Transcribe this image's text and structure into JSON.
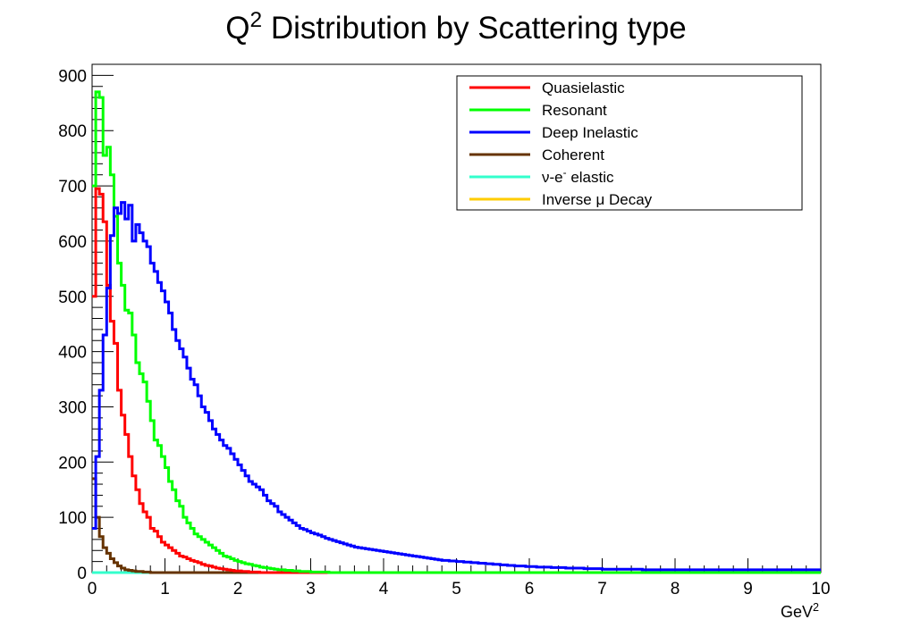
{
  "chart_data": {
    "type": "line",
    "style": "step-histogram",
    "title": {
      "base": "Q",
      "sup": "2",
      "rest": " Distribution by Scattering type"
    },
    "xlabel": {
      "base": "GeV",
      "sup": "2"
    },
    "ylabel": "",
    "xlim": [
      0,
      10
    ],
    "ylim": [
      0,
      920
    ],
    "x_ticks": [
      0,
      1,
      2,
      3,
      4,
      5,
      6,
      7,
      8,
      9,
      10
    ],
    "y_ticks": [
      0,
      100,
      200,
      300,
      400,
      500,
      600,
      700,
      800,
      900
    ],
    "grid": false,
    "legend_position": "top-right",
    "bin_width": 0.05,
    "series": [
      {
        "name": "Quasielastic",
        "legend": {
          "parts": [
            {
              "t": "Quasielastic"
            }
          ]
        },
        "color": "#ff0000",
        "values": [
          500,
          695,
          685,
          635,
          520,
          455,
          415,
          330,
          285,
          250,
          210,
          175,
          150,
          125,
          110,
          100,
          80,
          75,
          65,
          55,
          50,
          45,
          40,
          35,
          30,
          28,
          25,
          22,
          20,
          18,
          15,
          13,
          12,
          10,
          8,
          7,
          6,
          5,
          4,
          3,
          3,
          2,
          2,
          1,
          1,
          1,
          0,
          0,
          0,
          0
        ]
      },
      {
        "name": "Resonant",
        "legend": {
          "parts": [
            {
              "t": "Resonant"
            }
          ]
        },
        "color": "#00ff00",
        "values": [
          700,
          870,
          860,
          755,
          770,
          720,
          645,
          560,
          520,
          475,
          470,
          430,
          380,
          360,
          345,
          310,
          275,
          240,
          230,
          210,
          190,
          165,
          150,
          130,
          120,
          100,
          90,
          80,
          70,
          65,
          60,
          55,
          50,
          45,
          40,
          35,
          30,
          28,
          25,
          22,
          20,
          18,
          16,
          15,
          13,
          12,
          10,
          9,
          8,
          7,
          6,
          5,
          5,
          4,
          4,
          3,
          3,
          2,
          2,
          2,
          1,
          1,
          1,
          1,
          1,
          0,
          0,
          0,
          0,
          0
        ]
      },
      {
        "name": "Deep Inelastic",
        "legend": {
          "parts": [
            {
              "t": "Deep Inelastic"
            }
          ]
        },
        "color": "#0000ff",
        "values": [
          80,
          210,
          330,
          430,
          515,
          610,
          660,
          650,
          670,
          640,
          665,
          600,
          630,
          615,
          600,
          590,
          560,
          545,
          525,
          510,
          490,
          470,
          440,
          420,
          405,
          390,
          370,
          350,
          340,
          320,
          300,
          290,
          275,
          260,
          250,
          240,
          230,
          225,
          215,
          205,
          195,
          185,
          175,
          165,
          160,
          155,
          150,
          140,
          130,
          125,
          120,
          110,
          105,
          100,
          95,
          90,
          85,
          80,
          78,
          75,
          72,
          70,
          68,
          65,
          62,
          60,
          58,
          56,
          54,
          52,
          50,
          48,
          46,
          45,
          44,
          43,
          42,
          41,
          40,
          39,
          38,
          37,
          36,
          35,
          34,
          33,
          32,
          31,
          30,
          29,
          28,
          27,
          26,
          25,
          24,
          23,
          22,
          22,
          21,
          21,
          20,
          20,
          19,
          19,
          18,
          18,
          17,
          17,
          16,
          16,
          15,
          15,
          14,
          14,
          13,
          13,
          12,
          12,
          12,
          11,
          11,
          11,
          10,
          10,
          10,
          10,
          9,
          9,
          9,
          9,
          8,
          8,
          8,
          8,
          8,
          7,
          7,
          7,
          7,
          7,
          6,
          6,
          6,
          6,
          6,
          6,
          6,
          6,
          6,
          6,
          6,
          5,
          5,
          5,
          5,
          5,
          5,
          5,
          5,
          5,
          5,
          5,
          5,
          5,
          5,
          5,
          5,
          5,
          5,
          5,
          5,
          5,
          5,
          5,
          5,
          5,
          5,
          5,
          5,
          5,
          5,
          5,
          5,
          5,
          5,
          5,
          5,
          5,
          5,
          5,
          5,
          5,
          5,
          5,
          5,
          5,
          5,
          5,
          5,
          5
        ]
      },
      {
        "name": "Coherent",
        "legend": {
          "parts": [
            {
              "t": "Coherent"
            }
          ]
        },
        "color": "#663300",
        "values": [
          170,
          100,
          65,
          45,
          35,
          25,
          18,
          12,
          8,
          5,
          4,
          3,
          2,
          2,
          1,
          1,
          0,
          0,
          0,
          0
        ]
      },
      {
        "name": "ν-e⁻ elastic",
        "legend": {
          "parts": [
            {
              "t": "ν-e"
            },
            {
              "t": "-",
              "sup": true
            },
            {
              "t": " elastic"
            }
          ]
        },
        "color": "#33ffcc",
        "values": [
          0,
          0,
          0,
          0,
          0,
          0,
          0,
          0,
          0,
          0,
          0,
          0,
          0,
          0,
          0,
          0,
          0,
          0,
          0,
          0
        ]
      },
      {
        "name": "Inverse μ Decay",
        "legend": {
          "parts": [
            {
              "t": "Inverse μ Decay"
            }
          ]
        },
        "color": "#ffcc00",
        "values": [
          0,
          0,
          0,
          0,
          0,
          0,
          0,
          0,
          0,
          0,
          0,
          0,
          0,
          0,
          0,
          0,
          0,
          0,
          0,
          0
        ]
      }
    ]
  }
}
